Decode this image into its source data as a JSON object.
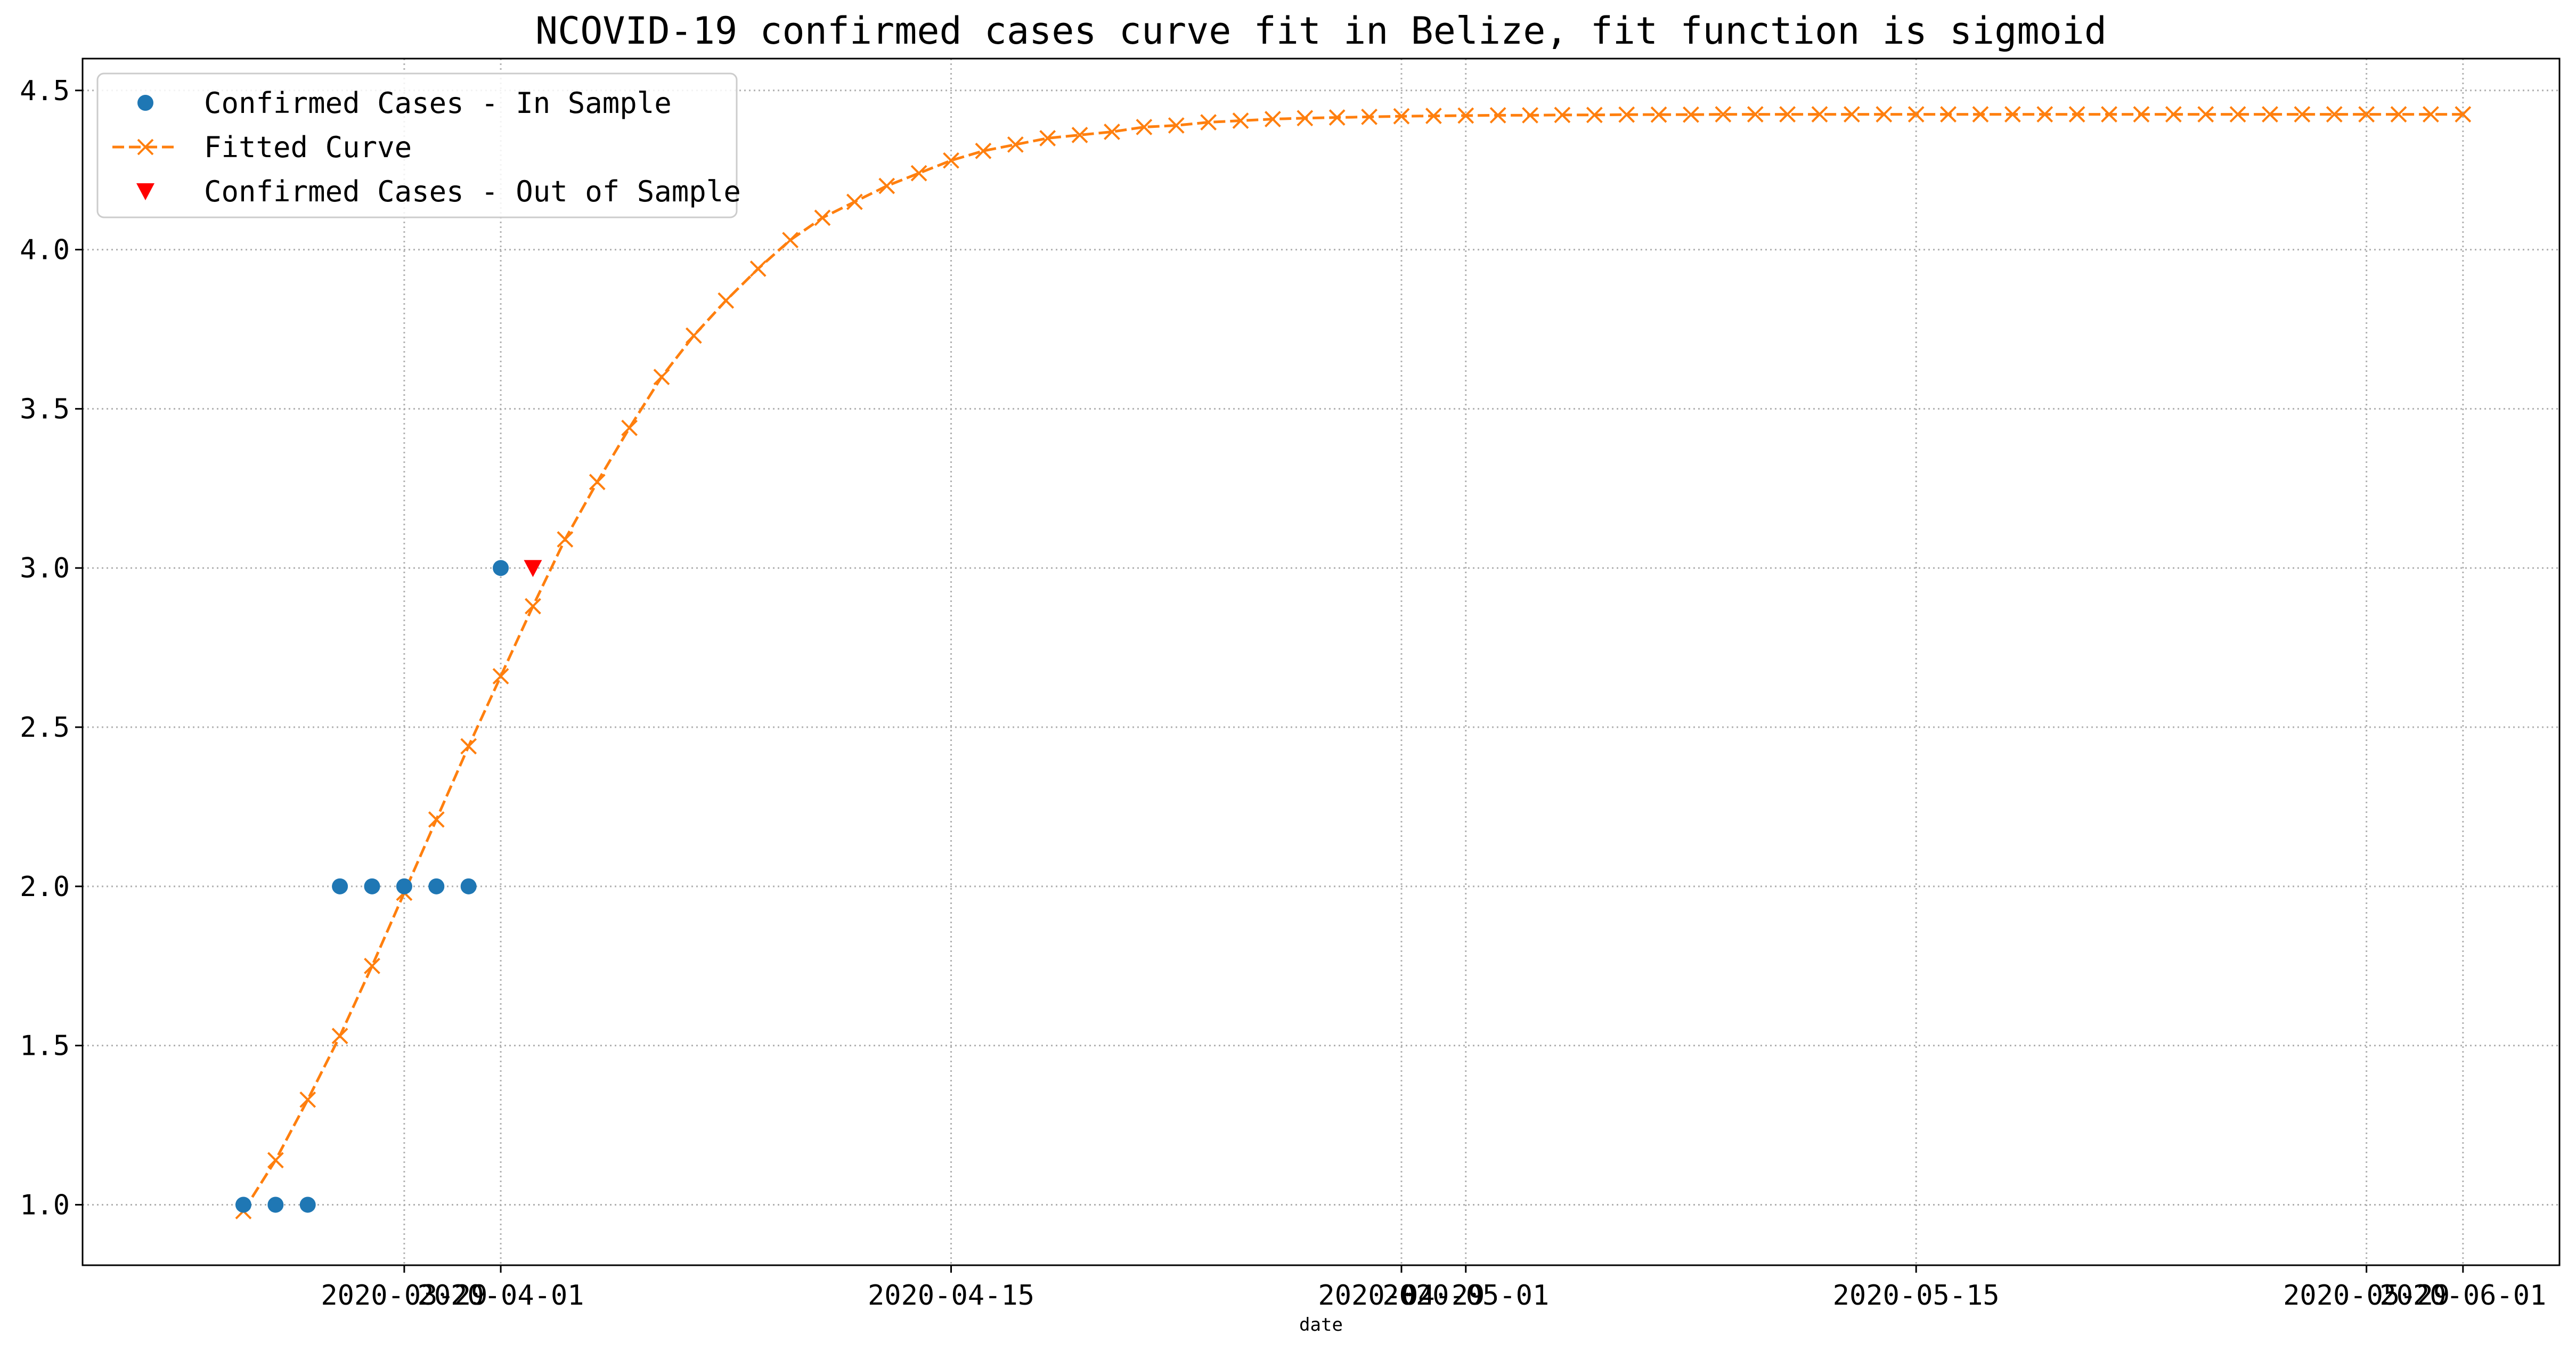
{
  "chart_data": {
    "type": "line",
    "title": "NCOVID-19 confirmed cases curve fit in Belize, fit function is sigmoid",
    "xlabel": "date",
    "ylabel": "",
    "grid": true,
    "legend_position": "top-left",
    "xlim": [
      "2020-03-19",
      "2020-06-04"
    ],
    "ylim": [
      0.81,
      4.6
    ],
    "x_ticks": [
      {
        "date": "2020-03-29",
        "label": "2020-03-29"
      },
      {
        "date": "2020-04-01",
        "label": "2020-04-01"
      },
      {
        "date": "2020-04-15",
        "label": "2020-04-15"
      },
      {
        "date": "2020-04-29",
        "label": "2020-04-29"
      },
      {
        "date": "2020-05-01",
        "label": "2020-05-01"
      },
      {
        "date": "2020-05-15",
        "label": "2020-05-15"
      },
      {
        "date": "2020-05-29",
        "label": "2020-05-29"
      },
      {
        "date": "2020-06-01",
        "label": "2020-06-01"
      }
    ],
    "y_ticks": [
      {
        "value": 1.0,
        "label": "1.0"
      },
      {
        "value": 1.5,
        "label": "1.5"
      },
      {
        "value": 2.0,
        "label": "2.0"
      },
      {
        "value": 2.5,
        "label": "2.5"
      },
      {
        "value": 3.0,
        "label": "3.0"
      },
      {
        "value": 3.5,
        "label": "3.5"
      },
      {
        "value": 4.0,
        "label": "4.0"
      },
      {
        "value": 4.5,
        "label": "4.5"
      }
    ],
    "series": [
      {
        "name": "Confirmed Cases - In Sample",
        "style": "marker-circle",
        "color": "#1f77b4",
        "x": [
          "2020-03-24",
          "2020-03-25",
          "2020-03-26",
          "2020-03-27",
          "2020-03-28",
          "2020-03-29",
          "2020-03-30",
          "2020-03-31",
          "2020-04-01"
        ],
        "y": [
          1,
          1,
          1,
          2,
          2,
          2,
          2,
          2,
          3
        ]
      },
      {
        "name": "Fitted Curve",
        "style": "dashed-line-x-marker",
        "color": "#ff7f0e",
        "x": [
          "2020-03-24",
          "2020-03-25",
          "2020-03-26",
          "2020-03-27",
          "2020-03-28",
          "2020-03-29",
          "2020-03-30",
          "2020-03-31",
          "2020-04-01",
          "2020-04-02",
          "2020-04-03",
          "2020-04-04",
          "2020-04-05",
          "2020-04-06",
          "2020-04-07",
          "2020-04-08",
          "2020-04-09",
          "2020-04-10",
          "2020-04-11",
          "2020-04-12",
          "2020-04-13",
          "2020-04-14",
          "2020-04-15",
          "2020-04-16",
          "2020-04-17",
          "2020-04-18",
          "2020-04-19",
          "2020-04-20",
          "2020-04-21",
          "2020-04-22",
          "2020-04-23",
          "2020-04-24",
          "2020-04-25",
          "2020-04-26",
          "2020-04-27",
          "2020-04-28",
          "2020-04-29",
          "2020-04-30",
          "2020-05-01",
          "2020-05-02",
          "2020-05-03",
          "2020-05-04",
          "2020-05-05",
          "2020-05-06",
          "2020-05-07",
          "2020-05-08",
          "2020-05-09",
          "2020-05-10",
          "2020-05-11",
          "2020-05-12",
          "2020-05-13",
          "2020-05-14",
          "2020-05-15",
          "2020-05-16",
          "2020-05-17",
          "2020-05-18",
          "2020-05-19",
          "2020-05-20",
          "2020-05-21",
          "2020-05-22",
          "2020-05-23",
          "2020-05-24",
          "2020-05-25",
          "2020-05-26",
          "2020-05-27",
          "2020-05-28",
          "2020-05-29",
          "2020-05-30",
          "2020-05-31",
          "2020-06-01"
        ],
        "y": [
          0.98,
          1.14,
          1.33,
          1.53,
          1.75,
          1.98,
          2.21,
          2.44,
          2.66,
          2.88,
          3.09,
          3.27,
          3.44,
          3.6,
          3.73,
          3.84,
          3.94,
          4.03,
          4.1,
          4.15,
          4.2,
          4.24,
          4.28,
          4.31,
          4.33,
          4.35,
          4.36,
          4.37,
          4.385,
          4.39,
          4.4,
          4.405,
          4.41,
          4.413,
          4.415,
          4.417,
          4.419,
          4.42,
          4.421,
          4.422,
          4.422,
          4.423,
          4.423,
          4.424,
          4.424,
          4.424,
          4.425,
          4.425,
          4.425,
          4.425,
          4.425,
          4.425,
          4.425,
          4.425,
          4.425,
          4.425,
          4.425,
          4.425,
          4.425,
          4.425,
          4.425,
          4.425,
          4.425,
          4.425,
          4.425,
          4.425,
          4.425,
          4.425,
          4.425,
          4.425
        ]
      },
      {
        "name": "Confirmed Cases - Out of Sample",
        "style": "marker-triangle-down",
        "color": "#ff0000",
        "x": [
          "2020-04-02"
        ],
        "y": [
          3
        ]
      }
    ]
  }
}
